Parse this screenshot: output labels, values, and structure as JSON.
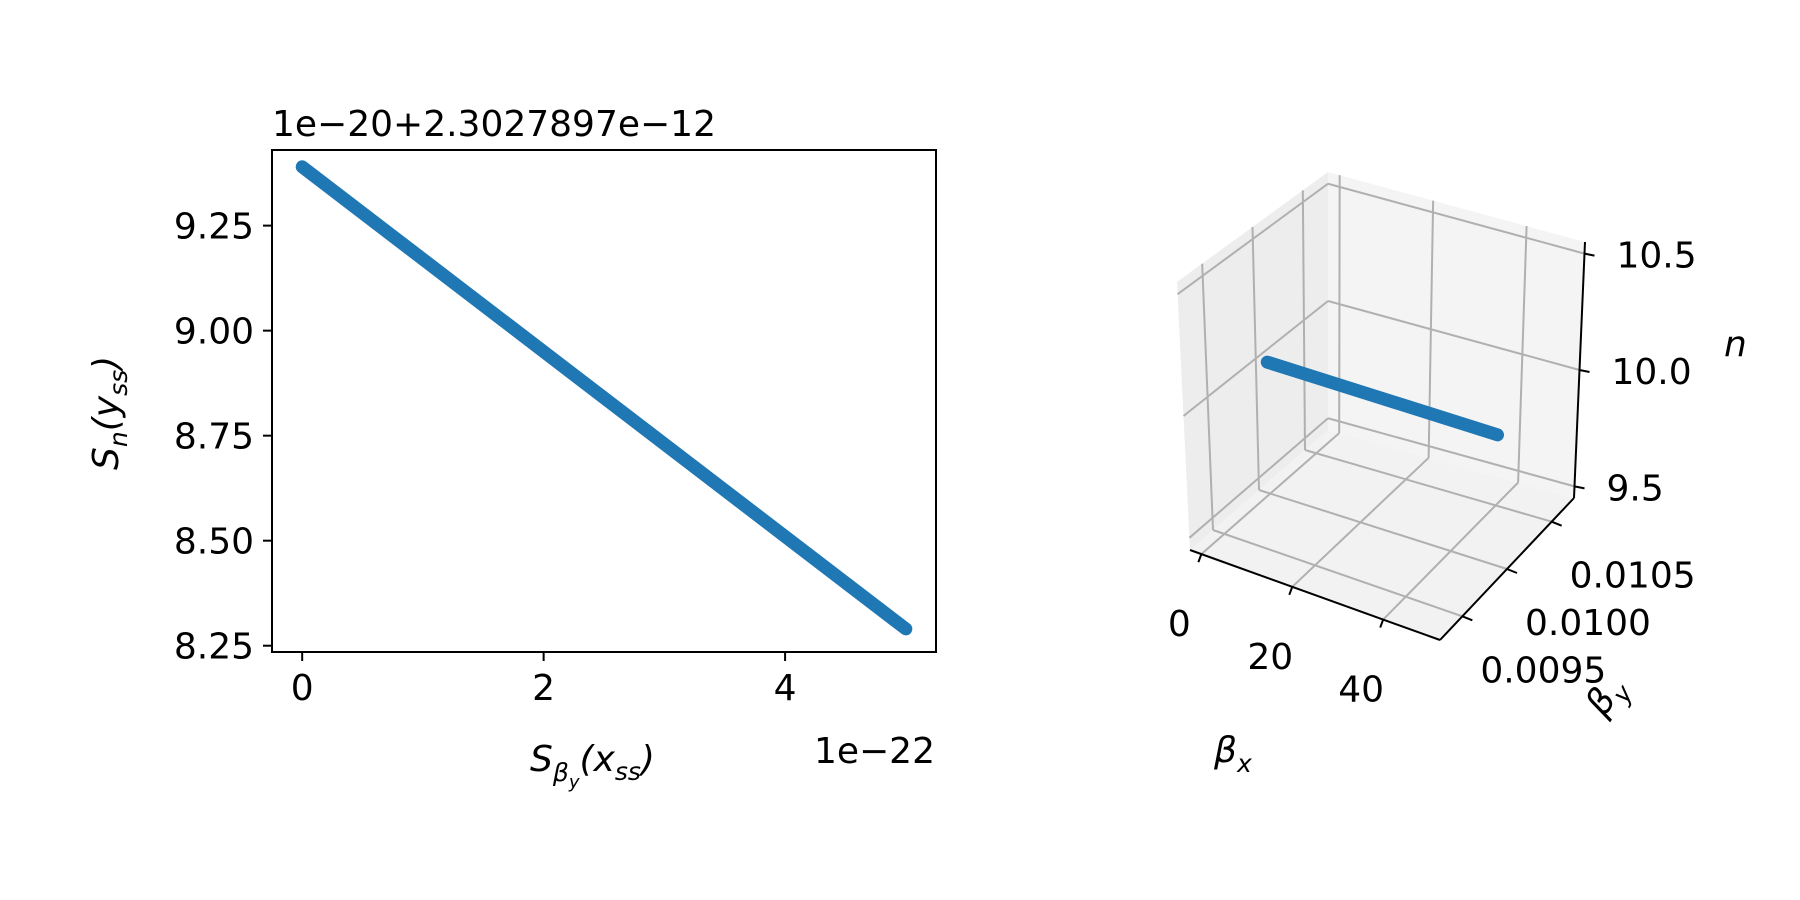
{
  "colors": {
    "series": "#1f77b4",
    "pane": "#f2f2f2",
    "grid": "#b0b0b0",
    "axis": "#000000"
  },
  "chart_data": [
    {
      "type": "line",
      "title": "",
      "offset_text": "1e−20+2.3027897e−12",
      "x_scale_text": "1e−22",
      "xlabel": {
        "main": "S",
        "sub": "β",
        "subsub": "y",
        "arg": "(x",
        "arg_sub": "ss",
        "close": ")"
      },
      "ylabel": {
        "main": "S",
        "sub": "n",
        "arg": "(y",
        "arg_sub": "ss",
        "close": ")"
      },
      "xlim": [
        -0.25,
        5.25
      ],
      "ylim": [
        8.235,
        9.43
      ],
      "xticks": [
        0,
        2,
        4
      ],
      "xtick_labels": [
        "0",
        "2",
        "4"
      ],
      "yticks": [
        8.25,
        8.5,
        8.75,
        9.0,
        9.25
      ],
      "ytick_labels": [
        "8.25",
        "8.50",
        "8.75",
        "9.00",
        "9.25"
      ],
      "grid": false,
      "series": [
        {
          "x": [
            0,
            5.0
          ],
          "y": [
            9.39,
            8.29
          ]
        }
      ]
    },
    {
      "type": "line",
      "projection": "3d",
      "title": "",
      "xlabel": "βx",
      "ylabel": "βy",
      "zlabel": "n",
      "xlabel_parts": {
        "main": "β",
        "sub": "x"
      },
      "ylabel_parts": {
        "main": "β",
        "sub": "y"
      },
      "xlim": [
        -2.5,
        52.5
      ],
      "ylim": [
        0.00925,
        0.01075
      ],
      "zlim": [
        9.45,
        10.55
      ],
      "xticks": [
        0,
        20,
        40
      ],
      "xtick_labels": [
        "0",
        "20",
        "40"
      ],
      "yticks": [
        0.0095,
        0.01,
        0.0105
      ],
      "ytick_labels": [
        "0.0095",
        "0.0100",
        "0.0105"
      ],
      "zticks": [
        9.5,
        10.0,
        10.5
      ],
      "ztick_labels": [
        "9.5",
        "10.0",
        "10.5"
      ],
      "grid": true,
      "series": [
        {
          "x": [
            0,
            50
          ],
          "y": [
            0.01,
            0.01
          ],
          "z": [
            10.0,
            10.0
          ]
        }
      ]
    }
  ]
}
